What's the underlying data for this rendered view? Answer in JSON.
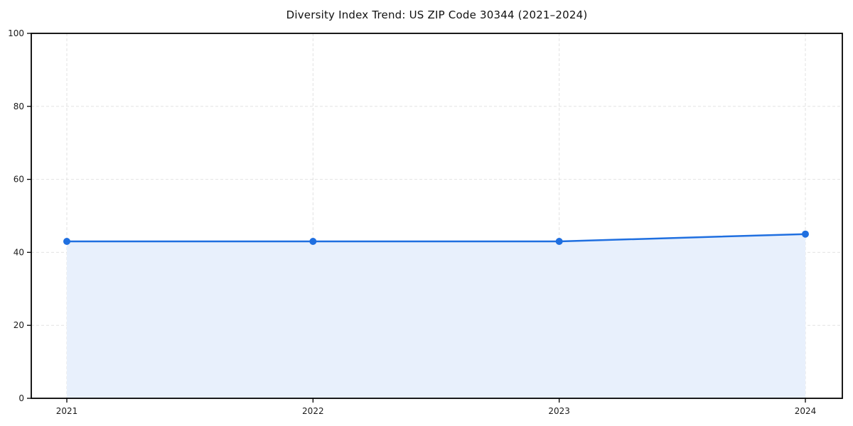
{
  "chart_data": {
    "type": "line",
    "title": "Diversity Index Trend: US ZIP Code 30344 (2021–2024)",
    "x": [
      2021,
      2022,
      2023,
      2024
    ],
    "x_tick_labels": [
      "2021",
      "2022",
      "2023",
      "2024"
    ],
    "series": [
      {
        "name": "Diversity Index",
        "values": [
          43,
          43,
          43,
          45
        ]
      }
    ],
    "xlabel": "",
    "ylabel": "",
    "ylim": [
      0,
      100
    ],
    "yticks": [
      0,
      20,
      40,
      60,
      80,
      100
    ],
    "grid": true,
    "grid_style": "dashed",
    "legend_position": "none",
    "area_fill": true,
    "markers": true,
    "colors": {
      "line": "#1f6fe0",
      "marker": "#1f6fe0",
      "area": "#e8f0fc",
      "grid": "#e2e2e2",
      "axis": "#000000",
      "tick_text": "#1a1a1a",
      "background": "#ffffff"
    }
  }
}
